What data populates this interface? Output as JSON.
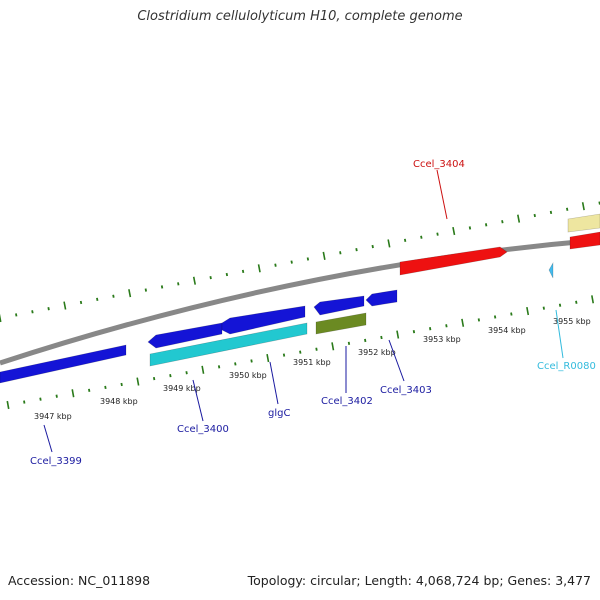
{
  "title": "Clostridium cellulolyticum H10, complete genome",
  "footer": {
    "accession": "Accession: NC_011898",
    "summary": "Topology: circular; Length: 4,068,724 bp; Genes: 3,477"
  },
  "colors": {
    "backbone": "#888888",
    "ticks": "#2a7a1a",
    "cds_blue": "#1414d6",
    "cds_cyan": "#22c8d0",
    "cds_olive": "#6b8a22",
    "cds_red": "#ee1111",
    "cds_yellow": "#eee6a0",
    "rna_cyan": "#44bbee",
    "label_blue": "#1a1aa0",
    "label_red": "#cc1111",
    "label_cyan": "#33bbdd"
  },
  "scale_labels": [
    "3947 kbp",
    "3948 kbp",
    "3949 kbp",
    "3950 kbp",
    "3951 kbp",
    "3952 kbp",
    "3953 kbp",
    "3954 kbp",
    "3955 kbp"
  ],
  "features": [
    {
      "label": "Ccel_3399",
      "color_key": "cds_blue",
      "label_color": "label_blue"
    },
    {
      "label": "Ccel_3400",
      "color_key": "cds_blue",
      "label_color": "label_blue"
    },
    {
      "label": "glgC",
      "color_key": "cds_cyan",
      "label_color": "label_blue"
    },
    {
      "label": "Ccel_3402",
      "color_key": "cds_blue",
      "label_color": "label_blue"
    },
    {
      "label": "Ccel_3403",
      "color_key": "cds_blue",
      "label_color": "label_blue"
    },
    {
      "label": "Ccel_3404",
      "color_key": "cds_red",
      "label_color": "label_red"
    },
    {
      "label": "Ccel_R0080",
      "color_key": "rna_cyan",
      "label_color": "label_cyan"
    }
  ]
}
